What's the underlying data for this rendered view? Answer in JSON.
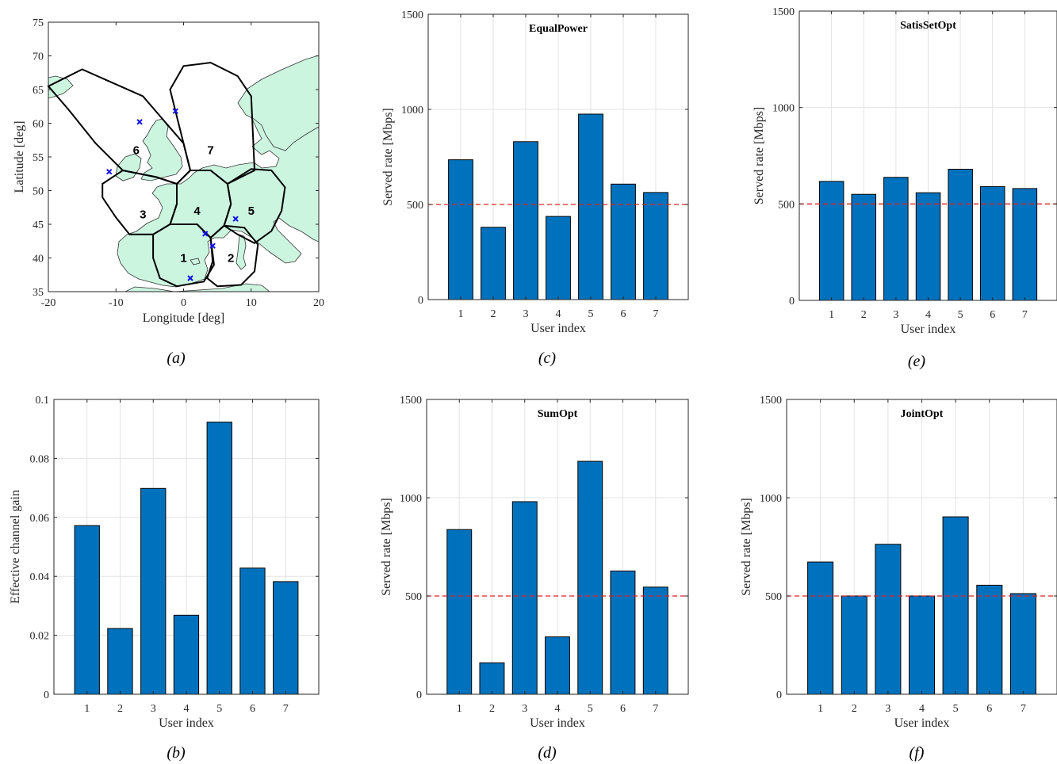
{
  "colors": {
    "bar": "#0072BD",
    "threshold": "#e02020",
    "land": "#ccf5e0",
    "grid": "#e3e3e3",
    "marker": "#1010ee"
  },
  "map": {
    "caption": "(a)",
    "xlabel": "Longitude [deg]",
    "ylabel": "Latitude [deg]",
    "xlim": [
      -20,
      20
    ],
    "ylim": [
      35,
      75
    ],
    "xticks": [
      -20,
      -10,
      0,
      10,
      20
    ],
    "yticks": [
      35,
      40,
      45,
      50,
      55,
      60,
      65,
      70,
      75
    ],
    "beams": [
      {
        "label": "1",
        "center": [
          0,
          40
        ]
      },
      {
        "label": "2",
        "center": [
          7,
          40
        ]
      },
      {
        "label": "3",
        "center": [
          -6,
          46.5
        ]
      },
      {
        "label": "4",
        "center": [
          2,
          47
        ]
      },
      {
        "label": "5",
        "center": [
          10,
          47
        ]
      },
      {
        "label": "6",
        "center": [
          -7,
          56
        ]
      },
      {
        "label": "7",
        "center": [
          4,
          56
        ]
      }
    ],
    "users": [
      [
        -11,
        52.8
      ],
      [
        -6.5,
        60.2
      ],
      [
        -1.2,
        61.8
      ],
      [
        3.2,
        43.6
      ],
      [
        4.3,
        41.8
      ],
      [
        7.7,
        45.8
      ],
      [
        1.0,
        37.0
      ]
    ]
  },
  "chart_data": [
    {
      "id": "c",
      "caption": "(c)",
      "type": "bar",
      "title": "EqualPower",
      "xlabel": "User index",
      "ylabel": "Served rate [Mbps]",
      "categories": [
        "1",
        "2",
        "3",
        "4",
        "5",
        "6",
        "7"
      ],
      "values": [
        735,
        380,
        830,
        437,
        975,
        607,
        563
      ],
      "ylim": [
        0,
        1500
      ],
      "yticks": [
        0,
        500,
        1000,
        1500
      ],
      "threshold": 500,
      "grid": true
    },
    {
      "id": "e",
      "caption": "(e)",
      "type": "bar",
      "title": "SatisSetOpt",
      "xlabel": "User index",
      "ylabel": "Served rate [Mbps]",
      "categories": [
        "1",
        "2",
        "3",
        "4",
        "5",
        "6",
        "7"
      ],
      "values": [
        617,
        550,
        638,
        558,
        680,
        590,
        580
      ],
      "ylim": [
        0,
        1500
      ],
      "yticks": [
        0,
        500,
        1000,
        1500
      ],
      "threshold": 500,
      "grid": true
    },
    {
      "id": "b",
      "caption": "(b)",
      "type": "bar",
      "title": "",
      "xlabel": "User index",
      "ylabel": "Effective channel gain",
      "categories": [
        "1",
        "2",
        "3",
        "4",
        "5",
        "6",
        "7"
      ],
      "values": [
        0.0572,
        0.0223,
        0.0698,
        0.0268,
        0.0923,
        0.0428,
        0.0382
      ],
      "ylim": [
        0,
        0.1
      ],
      "yticks": [
        0,
        0.02,
        0.04,
        0.06,
        0.08,
        0.1
      ],
      "grid": true
    },
    {
      "id": "d",
      "caption": "(d)",
      "type": "bar",
      "title": "SumOpt",
      "xlabel": "User index",
      "ylabel": "Served rate [Mbps]",
      "categories": [
        "1",
        "2",
        "3",
        "4",
        "5",
        "6",
        "7"
      ],
      "values": [
        838,
        160,
        980,
        292,
        1185,
        627,
        545
      ],
      "ylim": [
        0,
        1500
      ],
      "yticks": [
        0,
        500,
        1000,
        1500
      ],
      "threshold": 500,
      "grid": true
    },
    {
      "id": "f",
      "caption": "(f)",
      "type": "bar",
      "title": "JointOpt",
      "xlabel": "User index",
      "ylabel": "Served rate [Mbps]",
      "categories": [
        "1",
        "2",
        "3",
        "4",
        "5",
        "6",
        "7"
      ],
      "values": [
        673,
        500,
        763,
        500,
        903,
        555,
        512
      ],
      "ylim": [
        0,
        1500
      ],
      "yticks": [
        0,
        500,
        1000,
        1500
      ],
      "threshold": 500,
      "grid": true
    }
  ]
}
